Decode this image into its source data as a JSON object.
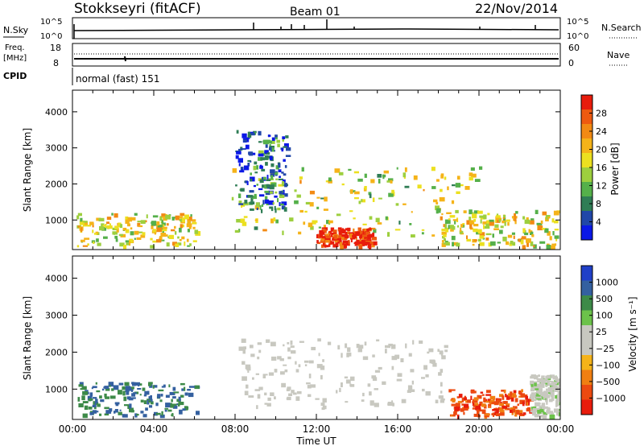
{
  "header": {
    "site": "Stokkseyri (fitACF)",
    "beam": "Beam 01",
    "date": "22/Nov/2014"
  },
  "top_panels": {
    "nsky_label": "N.Sky",
    "nsky_ticks": [
      "10^5",
      "10^0"
    ],
    "nsearch_label": "N.Search",
    "nsearch_ticks": [
      "10^5",
      "10^0"
    ],
    "freq_label": "Freq.",
    "freq_unit": "[MHz]",
    "freq_ticks": [
      "18",
      "8"
    ],
    "nave_label": "Nave",
    "nave_ticks": [
      "60",
      "0"
    ],
    "cpid_label": "CPID",
    "cpid_value": "normal (fast) 151"
  },
  "chart_data": [
    {
      "type": "heatmap",
      "title": "",
      "xlabel": "",
      "ylabel": "Slant Range [km]",
      "xlim": [
        0,
        24
      ],
      "ylim": [
        180,
        4600
      ],
      "x_ticks": [
        "00:00",
        "04:00",
        "08:00",
        "12:00",
        "16:00",
        "20:00",
        "00:00"
      ],
      "y_ticks": [
        "1000",
        "2000",
        "3000",
        "4000"
      ],
      "colorbar_label": "Power [dB]",
      "colorbar_ticks": [
        "4",
        "8",
        "12",
        "16",
        "20",
        "24",
        "28"
      ],
      "colorbar_colors": [
        "#0b18e6",
        "#2147a8",
        "#2f7d55",
        "#55b04a",
        "#9dcf3e",
        "#ece020",
        "#f5b319",
        "#f28a14",
        "#ee5a10",
        "#e81c0c"
      ],
      "regions": [
        {
          "t": [
            0.2,
            6.1
          ],
          "r": [
            300,
            1200
          ],
          "level": 0.55
        },
        {
          "t": [
            7.8,
            20.0
          ],
          "r": [
            600,
            2500
          ],
          "level": 0.5
        },
        {
          "t": [
            12.0,
            14.8
          ],
          "r": [
            300,
            800
          ],
          "level": 0.95
        },
        {
          "t": [
            18.0,
            24.0
          ],
          "r": [
            300,
            1300
          ],
          "level": 0.55
        },
        {
          "t": [
            8.0,
            10.5
          ],
          "r": [
            1300,
            3500
          ],
          "level": 0.2
        }
      ]
    },
    {
      "type": "heatmap",
      "title": "",
      "xlabel": "Time UT",
      "ylabel": "Slant Range [km]",
      "xlim": [
        0,
        24
      ],
      "ylim": [
        180,
        4600
      ],
      "x_ticks": [
        "00:00",
        "04:00",
        "08:00",
        "12:00",
        "16:00",
        "20:00",
        "00:00"
      ],
      "y_ticks": [
        "1000",
        "2000",
        "3000",
        "4000"
      ],
      "colorbar_label": "Velocity [m s⁻¹]",
      "colorbar_ticks": [
        "1000",
        "500",
        "100",
        "25",
        "−25",
        "−100",
        "−500",
        "−1000"
      ],
      "colorbar_colors": [
        "#2040c8",
        "#3460a0",
        "#3d8a48",
        "#6cc24a",
        "#c8c8c0",
        "#c8c8c0",
        "#f5b319",
        "#f07f12",
        "#ec4a10",
        "#e81c0c"
      ],
      "regions": [
        {
          "t": [
            0.2,
            6.1
          ],
          "r": [
            300,
            1200
          ],
          "vel": 0.6
        },
        {
          "t": [
            8.0,
            18.5
          ],
          "r": [
            500,
            2400
          ],
          "vel": 0.0
        },
        {
          "t": [
            18.5,
            22.5
          ],
          "r": [
            300,
            1000
          ],
          "vel": -0.7
        },
        {
          "t": [
            22.5,
            24.0
          ],
          "r": [
            300,
            1400
          ],
          "vel": 0.1
        }
      ]
    }
  ]
}
